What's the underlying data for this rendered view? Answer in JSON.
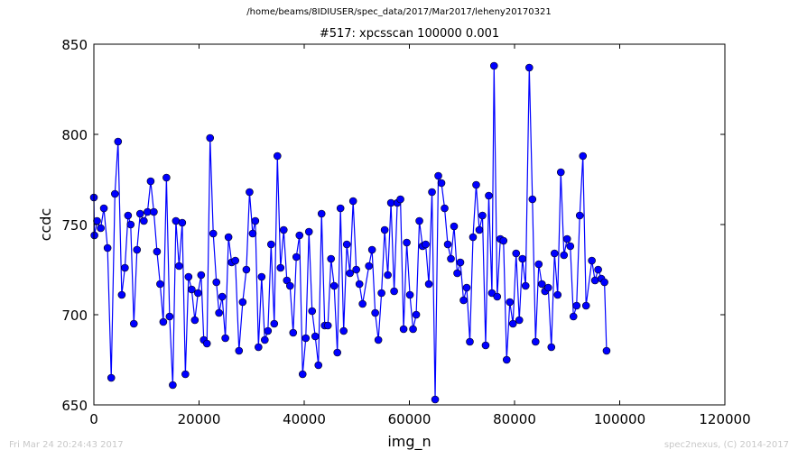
{
  "header": {
    "path": "/home/beams/8IDIUSER/spec_data/2017/Mar2017/leheny20170321",
    "title": "#517: xpcsscan 100000 0.001"
  },
  "footer": {
    "timestamp": "Fri Mar 24 20:24:43 2017",
    "credit": "spec2nexus, (C) 2014-2017"
  },
  "colors": {
    "series": "#0000ff",
    "marker_fill": "#0000ff"
  },
  "chart_data": {
    "type": "line",
    "title": "#517: xpcsscan 100000 0.001",
    "xlabel": "img_n",
    "ylabel": "ccdc",
    "xlim": [
      0,
      120000
    ],
    "ylim": [
      650,
      850
    ],
    "xticks": [
      0,
      20000,
      40000,
      60000,
      80000,
      100000,
      120000
    ],
    "yticks": [
      650,
      700,
      750,
      800,
      850
    ],
    "grid": false,
    "legend": "none",
    "series": [
      {
        "marker": "circle",
        "points": [
          [
            0,
            765
          ],
          [
            100,
            744
          ],
          [
            600,
            752
          ],
          [
            1300,
            748
          ],
          [
            1900,
            759
          ],
          [
            2600,
            737
          ],
          [
            3300,
            665
          ],
          [
            4000,
            767
          ],
          [
            4600,
            796
          ],
          [
            5300,
            711
          ],
          [
            5900,
            726
          ],
          [
            6500,
            755
          ],
          [
            7000,
            750
          ],
          [
            7600,
            695
          ],
          [
            8200,
            736
          ],
          [
            8800,
            756
          ],
          [
            9500,
            752
          ],
          [
            10200,
            757
          ],
          [
            10800,
            774
          ],
          [
            11400,
            757
          ],
          [
            12000,
            735
          ],
          [
            12600,
            717
          ],
          [
            13200,
            696
          ],
          [
            13800,
            776
          ],
          [
            14400,
            699
          ],
          [
            15000,
            661
          ],
          [
            15600,
            752
          ],
          [
            16200,
            727
          ],
          [
            16800,
            751
          ],
          [
            17400,
            667
          ],
          [
            18000,
            721
          ],
          [
            18600,
            714
          ],
          [
            19200,
            697
          ],
          [
            19800,
            712
          ],
          [
            20400,
            722
          ],
          [
            20900,
            686
          ],
          [
            21500,
            684
          ],
          [
            22100,
            798
          ],
          [
            22700,
            745
          ],
          [
            23300,
            718
          ],
          [
            23800,
            701
          ],
          [
            24400,
            710
          ],
          [
            25000,
            687
          ],
          [
            25600,
            743
          ],
          [
            26200,
            729
          ],
          [
            26900,
            730
          ],
          [
            27600,
            680
          ],
          [
            28300,
            707
          ],
          [
            29000,
            725
          ],
          [
            29600,
            768
          ],
          [
            30200,
            745
          ],
          [
            30700,
            752
          ],
          [
            31300,
            682
          ],
          [
            31900,
            721
          ],
          [
            32500,
            686
          ],
          [
            33100,
            691
          ],
          [
            33700,
            739
          ],
          [
            34300,
            695
          ],
          [
            34900,
            788
          ],
          [
            35500,
            726
          ],
          [
            36100,
            747
          ],
          [
            36700,
            719
          ],
          [
            37300,
            716
          ],
          [
            37900,
            690
          ],
          [
            38500,
            732
          ],
          [
            39100,
            744
          ],
          [
            39700,
            667
          ],
          [
            40300,
            687
          ],
          [
            40900,
            746
          ],
          [
            41500,
            702
          ],
          [
            42100,
            688
          ],
          [
            42700,
            672
          ],
          [
            43300,
            756
          ],
          [
            43900,
            694
          ],
          [
            44500,
            694
          ],
          [
            45100,
            731
          ],
          [
            45700,
            716
          ],
          [
            46300,
            679
          ],
          [
            46900,
            759
          ],
          [
            47500,
            691
          ],
          [
            48100,
            739
          ],
          [
            48700,
            723
          ],
          [
            49300,
            763
          ],
          [
            49900,
            725
          ],
          [
            50500,
            717
          ],
          [
            51100,
            706
          ],
          [
            52300,
            727
          ],
          [
            52900,
            736
          ],
          [
            53500,
            701
          ],
          [
            54100,
            686
          ],
          [
            54700,
            712
          ],
          [
            55300,
            747
          ],
          [
            55900,
            722
          ],
          [
            56500,
            762
          ],
          [
            57100,
            713
          ],
          [
            57700,
            762
          ],
          [
            58300,
            764
          ],
          [
            58900,
            692
          ],
          [
            59500,
            740
          ],
          [
            60100,
            711
          ],
          [
            60700,
            692
          ],
          [
            61300,
            700
          ],
          [
            61900,
            752
          ],
          [
            62500,
            738
          ],
          [
            63100,
            739
          ],
          [
            63700,
            717
          ],
          [
            64300,
            768
          ],
          [
            64900,
            653
          ],
          [
            65500,
            777
          ],
          [
            66100,
            773
          ],
          [
            66700,
            759
          ],
          [
            67300,
            739
          ],
          [
            67900,
            731
          ],
          [
            68500,
            749
          ],
          [
            69100,
            723
          ],
          [
            69700,
            729
          ],
          [
            70300,
            708
          ],
          [
            70900,
            715
          ],
          [
            71500,
            685
          ],
          [
            72100,
            743
          ],
          [
            72700,
            772
          ],
          [
            73300,
            747
          ],
          [
            73900,
            755
          ],
          [
            74500,
            683
          ],
          [
            75100,
            766
          ],
          [
            75700,
            712
          ],
          [
            76100,
            838
          ],
          [
            76700,
            710
          ],
          [
            77300,
            742
          ],
          [
            77900,
            741
          ],
          [
            78500,
            675
          ],
          [
            79100,
            707
          ],
          [
            79700,
            695
          ],
          [
            80300,
            734
          ],
          [
            80900,
            697
          ],
          [
            81500,
            731
          ],
          [
            82100,
            716
          ],
          [
            82800,
            837
          ],
          [
            83400,
            764
          ],
          [
            84000,
            685
          ],
          [
            84600,
            728
          ],
          [
            85200,
            717
          ],
          [
            85800,
            713
          ],
          [
            86400,
            715
          ],
          [
            87000,
            682
          ],
          [
            87600,
            734
          ],
          [
            88200,
            711
          ],
          [
            88800,
            779
          ],
          [
            89400,
            733
          ],
          [
            90000,
            742
          ],
          [
            90600,
            738
          ],
          [
            91200,
            699
          ],
          [
            91800,
            705
          ],
          [
            92400,
            755
          ],
          [
            93000,
            788
          ],
          [
            93600,
            705
          ],
          [
            94700,
            730
          ],
          [
            95300,
            719
          ],
          [
            95900,
            725
          ],
          [
            96500,
            720
          ],
          [
            97100,
            718
          ],
          [
            97500,
            680
          ]
        ]
      }
    ]
  }
}
